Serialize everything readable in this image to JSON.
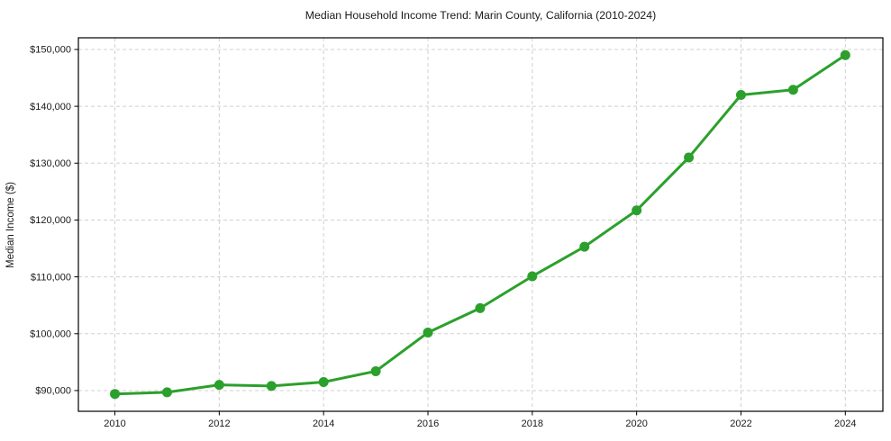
{
  "chart_data": {
    "type": "line",
    "title": "Median Household Income Trend: Marin County, California (2010-2024)",
    "xlabel": "",
    "ylabel": "Median Income ($)",
    "x": [
      2010,
      2011,
      2012,
      2013,
      2014,
      2015,
      2016,
      2017,
      2018,
      2019,
      2020,
      2021,
      2022,
      2023,
      2024
    ],
    "series": [
      {
        "name": "Median Household Income",
        "values": [
          89400,
          89700,
          91000,
          90800,
          91500,
          93400,
          100200,
          104500,
          110100,
          115300,
          121700,
          131000,
          142000,
          142900,
          149000
        ]
      }
    ],
    "x_ticks": [
      2010,
      2012,
      2014,
      2016,
      2018,
      2020,
      2022,
      2024
    ],
    "y_ticks": [
      90000,
      100000,
      110000,
      120000,
      130000,
      140000,
      150000
    ],
    "y_tick_labels": [
      "$90,000",
      "$100,000",
      "$110,000",
      "$120,000",
      "$130,000",
      "$140,000",
      "$150,000"
    ],
    "xlim": [
      2009.3,
      2024.72
    ],
    "ylim": [
      86350,
      152050
    ],
    "grid": true,
    "legend": "none",
    "line_color": "#2ca02c",
    "marker": "circle",
    "marker_radius": 5.5,
    "line_width": 3,
    "grid_color": "#d0d0d0",
    "axis_color": "#000000",
    "text_color": "#1a1a1a",
    "background_color": "#ffffff"
  }
}
